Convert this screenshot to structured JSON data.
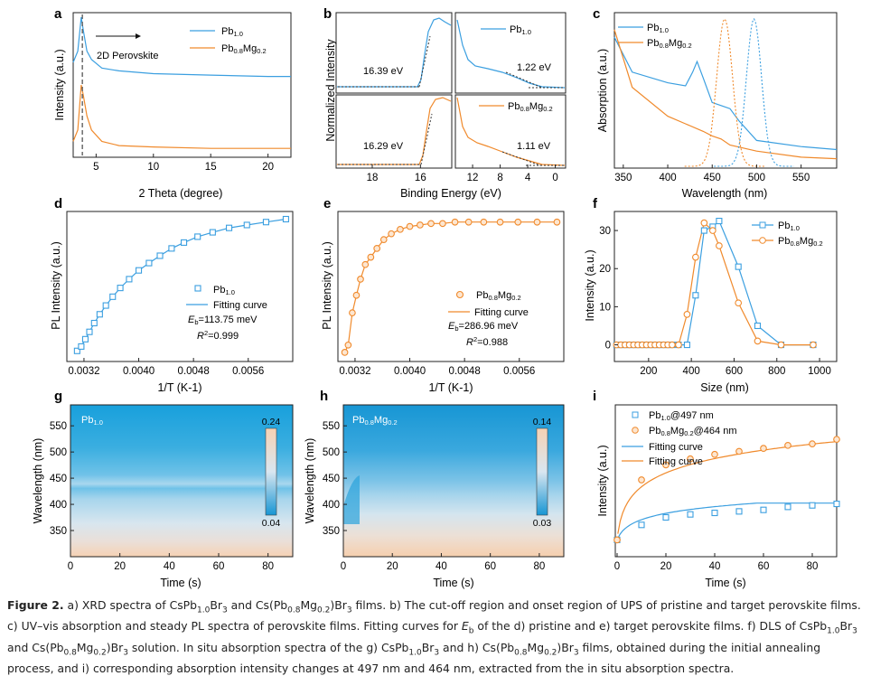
{
  "colors": {
    "blue": "#3b9fe0",
    "orange": "#f08a2c",
    "heat_hi": "#f6d2b4",
    "heat_mid": "#d6e4ef",
    "heat_lo": "#1796d4"
  },
  "panels": {
    "a": {
      "label": "a",
      "legend": [
        "Pb",
        "1.0",
        "Pb",
        "0.8",
        "Mg",
        "0.2"
      ],
      "annotation": "2D Perovskite"
    },
    "b": {
      "label": "b",
      "legend1": [
        "Pb",
        "1.0"
      ],
      "legend2": [
        "Pb",
        "0.8",
        "Mg",
        "0.2"
      ],
      "labels": [
        "16.39 eV",
        "1.22 eV",
        "16.29 eV",
        "1.11 eV"
      ],
      "ylabel": "Normalized Intensity",
      "xlabel": "Binding Energy (eV)"
    },
    "c": {
      "label": "c",
      "legend": [
        "Pb",
        "1.0",
        "Pb",
        "0.8",
        "Mg",
        "0.2"
      ],
      "ylabel": "Absorption (a.u.)",
      "xlabel": "Wavelength (nm)"
    },
    "d": {
      "label": "d",
      "legend": [
        "Pb",
        "1.0"
      ],
      "fit_label": "Fitting curve",
      "eb_sym": "E",
      "eb_sub": "b",
      "eb_val": "=113.75 meV",
      "r2_sym": "R",
      "r2_sup": "2",
      "r2_val": "=0.999"
    },
    "e": {
      "label": "e",
      "legend": [
        "Pb",
        "0.8",
        "Mg",
        "0.2"
      ],
      "fit_label": "Fitting curve",
      "eb_sym": "E",
      "eb_sub": "b",
      "eb_val": "=286.96 meV",
      "r2_sym": "R",
      "r2_sup": "2",
      "r2_val": "=0.988"
    },
    "f": {
      "label": "f",
      "legend": [
        "Pb",
        "1.0",
        "Pb",
        "0.8",
        "Mg",
        "0.2"
      ],
      "ylabel": "Intensity (a.u.)",
      "xlabel": "Size (nm)"
    },
    "g": {
      "label": "g",
      "tag": [
        "Pb",
        "1.0"
      ],
      "cb_max": "0.24",
      "cb_min": "0.04",
      "ylabel": "Wavelength (nm)",
      "xlabel": "Time (s)"
    },
    "h": {
      "label": "h",
      "tag": [
        "Pb",
        "0.8",
        "Mg",
        "0.2"
      ],
      "cb_max": "0.14",
      "cb_min": "0.03",
      "ylabel": "Wavelength (nm)",
      "xlabel": "Time (s)"
    },
    "i": {
      "label": "i",
      "legend": [
        "Pb",
        "1.0",
        "@497 nm",
        "Pb",
        "0.8",
        "Mg",
        "0.2",
        "@464 nm"
      ],
      "fit_label": "Fitting curve",
      "ylabel": "Intensity (a.u.)",
      "xlabel": "Time (s)"
    }
  },
  "chart_data": [
    {
      "panel": "a",
      "type": "line",
      "xlabel": "2 Theta (degree)",
      "ylabel": "Intensity (a.u.)",
      "xlim": [
        3,
        22
      ],
      "x_ticks": [
        5,
        10,
        15,
        20
      ],
      "peak_marker_x": 3.8,
      "series": [
        {
          "name": "Pb1.0",
          "x": [
            3.0,
            3.4,
            3.7,
            3.9,
            4.2,
            4.6,
            5.5,
            7,
            10,
            15,
            20,
            22
          ],
          "y": [
            0.66,
            0.74,
            0.98,
            0.88,
            0.74,
            0.68,
            0.62,
            0.6,
            0.58,
            0.57,
            0.56,
            0.56
          ]
        },
        {
          "name": "Pb0.8Mg0.2",
          "x": [
            3.0,
            3.4,
            3.7,
            3.9,
            4.2,
            4.6,
            5.5,
            7,
            10,
            15,
            20,
            22
          ],
          "y": [
            0.1,
            0.18,
            0.5,
            0.42,
            0.28,
            0.18,
            0.1,
            0.07,
            0.06,
            0.05,
            0.05,
            0.05
          ]
        }
      ]
    },
    {
      "panel": "b",
      "type": "line",
      "xlabel": "Binding Energy (eV)",
      "ylabel": "Normalized Intensity",
      "left_xlim": [
        19.5,
        14.7
      ],
      "left_ticks": [
        18,
        16
      ],
      "right_xlim": [
        14.5,
        -1.5
      ],
      "right_ticks": [
        12,
        8,
        4,
        0
      ],
      "cutoff_onsets_eV": {
        "Pb1.0": [
          16.39,
          1.22
        ],
        "Pb0.8Mg0.2": [
          16.29,
          1.11
        ]
      }
    },
    {
      "panel": "c",
      "type": "line",
      "xlabel": "Wavelength (nm)",
      "ylabel": "Absorption (a.u.)",
      "xlim": [
        340,
        590
      ],
      "x_ticks": [
        350,
        400,
        450,
        500,
        550
      ],
      "series": [
        {
          "name": "Pb1.0 absorption",
          "x": [
            340,
            360,
            400,
            420,
            428,
            433,
            440,
            450,
            460,
            470,
            480,
            500,
            550,
            590
          ],
          "y": [
            0.85,
            0.62,
            0.55,
            0.53,
            0.62,
            0.69,
            0.58,
            0.42,
            0.4,
            0.38,
            0.3,
            0.17,
            0.13,
            0.11
          ]
        },
        {
          "name": "Pb0.8Mg0.2 absorption",
          "x": [
            340,
            360,
            400,
            420,
            440,
            450,
            460,
            470,
            500,
            550,
            590
          ],
          "y": [
            0.9,
            0.52,
            0.33,
            0.28,
            0.23,
            0.2,
            0.18,
            0.14,
            0.1,
            0.06,
            0.05
          ]
        },
        {
          "name": "Pb1.0 PL",
          "peak_nm": 497,
          "fwhm_nm": 20
        },
        {
          "name": "Pb0.8Mg0.2 PL",
          "peak_nm": 464,
          "fwhm_nm": 21
        }
      ]
    },
    {
      "panel": "d",
      "type": "scatter",
      "xlabel": "1/T (K-1)",
      "ylabel": "PL Intensity (a.u.)",
      "xlim": [
        0.00295,
        0.00625
      ],
      "x_ticks": [
        "0.0032",
        "0.0040",
        "0.0048",
        "0.0056"
      ],
      "x": [
        0.0031,
        0.00316,
        0.00322,
        0.00328,
        0.00335,
        0.00343,
        0.00352,
        0.00362,
        0.00373,
        0.00386,
        0.004,
        0.00415,
        0.00431,
        0.00448,
        0.00466,
        0.00486,
        0.00508,
        0.00532,
        0.00558,
        0.00586,
        0.00615
      ],
      "y": [
        0.06,
        0.09,
        0.14,
        0.19,
        0.25,
        0.31,
        0.37,
        0.43,
        0.49,
        0.55,
        0.61,
        0.66,
        0.71,
        0.76,
        0.8,
        0.84,
        0.87,
        0.9,
        0.92,
        0.94,
        0.96
      ]
    },
    {
      "panel": "e",
      "type": "scatter",
      "xlabel": "1/T (K-1)",
      "ylabel": "PL Intensity (a.u.)",
      "xlim": [
        0.00295,
        0.00625
      ],
      "x_ticks": [
        "0.0032",
        "0.0040",
        "0.0048",
        "0.0056"
      ],
      "x": [
        0.00305,
        0.0031,
        0.00316,
        0.00322,
        0.00328,
        0.00335,
        0.00343,
        0.00352,
        0.00362,
        0.00373,
        0.00386,
        0.004,
        0.00415,
        0.00431,
        0.00448,
        0.00466,
        0.00486,
        0.00508,
        0.00532,
        0.00558,
        0.00586,
        0.00615
      ],
      "y": [
        0.05,
        0.1,
        0.32,
        0.44,
        0.55,
        0.65,
        0.7,
        0.76,
        0.82,
        0.86,
        0.89,
        0.91,
        0.92,
        0.93,
        0.93,
        0.94,
        0.94,
        0.94,
        0.94,
        0.94,
        0.94,
        0.94
      ]
    },
    {
      "panel": "f",
      "type": "line",
      "xlabel": "Size (nm)",
      "ylabel": "Intensity (a.u.)",
      "xlim": [
        40,
        1080
      ],
      "ylim": [
        -2,
        35
      ],
      "x_ticks": [
        200,
        400,
        600,
        800,
        1000
      ],
      "y_ticks": [
        0,
        10,
        20,
        30
      ],
      "series": [
        {
          "name": "Pb1.0",
          "x": [
            50,
            70,
            90,
            110,
            130,
            150,
            170,
            190,
            210,
            230,
            250,
            270,
            290,
            310,
            340,
            380,
            420,
            460,
            500,
            530,
            620,
            710,
            820,
            970
          ],
          "y": [
            0,
            0,
            0,
            0,
            0,
            0,
            0,
            0,
            0,
            0,
            0,
            0,
            0,
            0,
            0,
            0,
            13,
            30,
            31,
            32.5,
            20.5,
            5,
            0,
            0
          ]
        },
        {
          "name": "Pb0.8Mg0.2",
          "x": [
            50,
            70,
            90,
            110,
            130,
            150,
            170,
            190,
            210,
            230,
            250,
            270,
            290,
            310,
            340,
            380,
            420,
            460,
            500,
            530,
            620,
            710,
            820,
            970
          ],
          "y": [
            0,
            0,
            0,
            0,
            0,
            0,
            0,
            0,
            0,
            0,
            0,
            0,
            0,
            0,
            0,
            8,
            23,
            32,
            30,
            26,
            11,
            1,
            0,
            0
          ]
        }
      ]
    },
    {
      "panel": "g",
      "type": "heatmap",
      "xlabel": "Time (s)",
      "ylabel": "Wavelength (nm)",
      "x_ticks": [
        0,
        20,
        40,
        60,
        80
      ],
      "y_ticks": [
        350,
        400,
        450,
        500,
        550
      ],
      "colorbar": [
        0.04,
        0.24
      ]
    },
    {
      "panel": "h",
      "type": "heatmap",
      "xlabel": "Time (s)",
      "ylabel": "Wavelength (nm)",
      "x_ticks": [
        0,
        20,
        40,
        60,
        80
      ],
      "y_ticks": [
        350,
        400,
        450,
        500,
        550
      ],
      "colorbar": [
        0.03,
        0.14
      ]
    },
    {
      "panel": "i",
      "type": "scatter",
      "xlabel": "Time (s)",
      "ylabel": "Intensity (a.u.)",
      "xlim": [
        0,
        90
      ],
      "x_ticks": [
        0,
        20,
        40,
        60,
        80
      ],
      "series": [
        {
          "name": "Pb1.0@497 nm",
          "x": [
            0,
            10,
            20,
            30,
            40,
            50,
            60,
            70,
            80,
            90
          ],
          "y": [
            0.1,
            0.2,
            0.25,
            0.27,
            0.28,
            0.29,
            0.3,
            0.32,
            0.33,
            0.34
          ]
        },
        {
          "name": "Pb0.8Mg0.2@464 nm",
          "x": [
            0,
            10,
            20,
            30,
            40,
            50,
            60,
            70,
            80,
            90
          ],
          "y": [
            0.1,
            0.5,
            0.6,
            0.64,
            0.67,
            0.69,
            0.71,
            0.73,
            0.74,
            0.77
          ]
        }
      ]
    }
  ],
  "caption": {
    "figure": "Figure 2.",
    "parts": [
      " a) XRD spectra of CsPb",
      "1.0",
      "Br",
      "3",
      " and Cs(Pb",
      "0.8",
      "Mg",
      "0.2",
      ")Br",
      "3",
      " films. b) The cut-off region and onset region of UPS of pristine and target perovskite films. c) UV–vis absorption and steady PL spectra of perovskite films. Fitting curves for ",
      "E",
      "b",
      " of the d) pristine and e) target perovskite films. f) DLS of CsPb",
      "1.0",
      "Br",
      "3",
      " and Cs(Pb",
      "0.8",
      "Mg",
      "0.2",
      ")Br",
      "3",
      " solution. In situ absorption spectra of the g) CsPb",
      "1.0",
      "Br",
      "3",
      " and h) Cs(Pb",
      "0.8",
      "Mg",
      "0.2",
      ")Br",
      "3",
      " films, obtained during the initial annealing process, and i) corresponding absorption intensity changes at 497 nm and 464 nm, extracted from the in situ absorption spectra."
    ]
  }
}
